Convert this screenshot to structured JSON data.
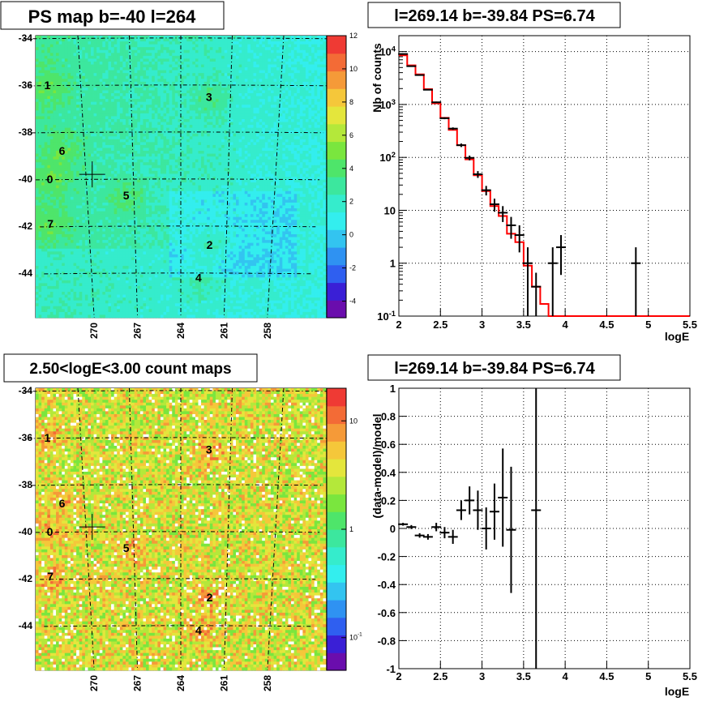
{
  "panels": {
    "tl_title": "PS map b=-40 l=264",
    "tr_title": "l=269.14 b=-39.84 PS=6.74",
    "bl_title": "2.50<logE<3.00 count maps",
    "br_title": "l=269.14 b=-39.84 PS=6.74"
  },
  "colors": {
    "map_bg_top": "#33f0ee",
    "map_bg_bottom": "#f2e84a",
    "model_line": "#ff0000",
    "data": "#000000"
  },
  "chart_data": [
    {
      "type": "heatmap",
      "title": "PS map b=-40 l=264",
      "ytick_labels": [
        "-34",
        "-36",
        "-38",
        "-40",
        "-42",
        "-44"
      ],
      "xtick_labels": [
        "270",
        "267",
        "264",
        "261",
        "258"
      ],
      "colorbar_ticks": [
        "12",
        "10",
        "8",
        "6",
        "4",
        "2",
        "0",
        "-2",
        "-4"
      ],
      "colorbar_range": [
        -5,
        12
      ],
      "sources": [
        {
          "label": "1",
          "l": 272.0,
          "b": -36.0
        },
        {
          "label": "3",
          "l": 262.3,
          "b": -36.5
        },
        {
          "label": "6",
          "l": 271.4,
          "b": -38.8
        },
        {
          "label": "0",
          "l": 272.3,
          "b": -40.0
        },
        {
          "label": "5",
          "l": 267.5,
          "b": -40.7
        },
        {
          "label": "7",
          "l": 272.5,
          "b": -41.9
        },
        {
          "label": "2",
          "l": 262.1,
          "b": -42.8
        },
        {
          "label": "4",
          "l": 262.8,
          "b": -44.2
        }
      ],
      "marker": {
        "l": 269.6,
        "b": -39.8
      }
    },
    {
      "type": "line",
      "title": "l=269.14 b=-39.84 PS=6.74",
      "xlabel": "logE",
      "ylabel": "Nb of counts",
      "yscale": "log",
      "xlim": [
        2,
        5.5
      ],
      "ylim": [
        0.1,
        20000
      ],
      "xtick_labels": [
        "2",
        "2.5",
        "3",
        "3.5",
        "4",
        "4.5",
        "5",
        "5.5"
      ],
      "ytick_labels": [
        "10^{-1}",
        "1",
        "10",
        "10^{2}",
        "10^{3}",
        "10^{4}"
      ],
      "model": {
        "name": "model",
        "edges": [
          2.0,
          2.1,
          2.2,
          2.3,
          2.4,
          2.5,
          2.6,
          2.7,
          2.8,
          2.9,
          3.0,
          3.1,
          3.2,
          3.3,
          3.4,
          3.5,
          3.6,
          3.7,
          3.8,
          3.9,
          4.0,
          5.5
        ],
        "values": [
          8500,
          5500,
          3700,
          1950,
          1050,
          560,
          330,
          170,
          92,
          46,
          23,
          12,
          7.8,
          3.6,
          2.5,
          0.9,
          0.36,
          0.17,
          0.1,
          0.1,
          0.1
        ]
      },
      "data": {
        "name": "data",
        "x": [
          2.05,
          2.15,
          2.25,
          2.35,
          2.45,
          2.55,
          2.65,
          2.75,
          2.85,
          2.95,
          3.05,
          3.15,
          3.25,
          3.35,
          3.45,
          3.55,
          3.65,
          3.85,
          3.95,
          4.85
        ],
        "y": [
          9000,
          5300,
          3600,
          1900,
          1100,
          550,
          350,
          170,
          98,
          48,
          24,
          13,
          9,
          5.2,
          3.4,
          1.0,
          0.36,
          1.0,
          2.0,
          1.0
        ],
        "yerr_lo": [
          95,
          73,
          60,
          44,
          33,
          23,
          19,
          13,
          10,
          7,
          4.9,
          3.6,
          3,
          2.3,
          1.8,
          1.0,
          0.3,
          1.0,
          1.4,
          1.0
        ],
        "yerr_hi": [
          95,
          73,
          60,
          44,
          33,
          23,
          19,
          13,
          10,
          7,
          4.9,
          3.6,
          3,
          2.3,
          1.8,
          1.0,
          0.3,
          1.0,
          1.4,
          1.0
        ]
      }
    },
    {
      "type": "heatmap",
      "title": "2.50<logE<3.00 count maps",
      "ytick_labels": [
        "-34",
        "-36",
        "-38",
        "-40",
        "-42",
        "-44"
      ],
      "xtick_labels": [
        "270",
        "267",
        "264",
        "261",
        "258"
      ],
      "colorbar_ticks": [
        "10",
        "1",
        "10^{-1}"
      ],
      "colorbar_scale": "log",
      "sources": [
        {
          "label": "1",
          "l": 272.0,
          "b": -36.0
        },
        {
          "label": "3",
          "l": 262.3,
          "b": -36.5
        },
        {
          "label": "6",
          "l": 271.4,
          "b": -38.8
        },
        {
          "label": "0",
          "l": 272.3,
          "b": -40.0
        },
        {
          "label": "5",
          "l": 267.5,
          "b": -40.7
        },
        {
          "label": "7",
          "l": 272.5,
          "b": -41.9
        },
        {
          "label": "2",
          "l": 262.1,
          "b": -42.8
        },
        {
          "label": "4",
          "l": 262.8,
          "b": -44.2
        }
      ],
      "marker": {
        "l": 269.6,
        "b": -39.8
      }
    },
    {
      "type": "scatter",
      "title": "l=269.14 b=-39.84 PS=6.74",
      "xlabel": "logE",
      "ylabel": "(data-model)/model",
      "xlim": [
        2,
        5.5
      ],
      "ylim": [
        -1,
        1
      ],
      "xtick_labels": [
        "2",
        "2.5",
        "3",
        "3.5",
        "4",
        "4.5",
        "5",
        "5.5"
      ],
      "ytick_labels": [
        "-1",
        "-0.8",
        "-0.6",
        "-0.4",
        "-0.2",
        "0",
        "0.2",
        "0.4",
        "0.6",
        "0.8",
        "1"
      ],
      "data": {
        "x": [
          2.05,
          2.15,
          2.25,
          2.35,
          2.45,
          2.55,
          2.65,
          2.75,
          2.85,
          2.95,
          3.05,
          3.15,
          3.25,
          3.35,
          3.65
        ],
        "y": [
          0.03,
          0.01,
          -0.05,
          -0.06,
          0.01,
          -0.03,
          -0.06,
          0.13,
          0.2,
          0.13,
          0.0,
          0.12,
          0.22,
          -0.01,
          0.13
        ],
        "yerr": [
          0.01,
          0.014,
          0.016,
          0.02,
          0.03,
          0.04,
          0.05,
          0.07,
          0.1,
          0.14,
          0.15,
          0.2,
          0.35,
          0.45,
          1.2
        ]
      }
    }
  ]
}
